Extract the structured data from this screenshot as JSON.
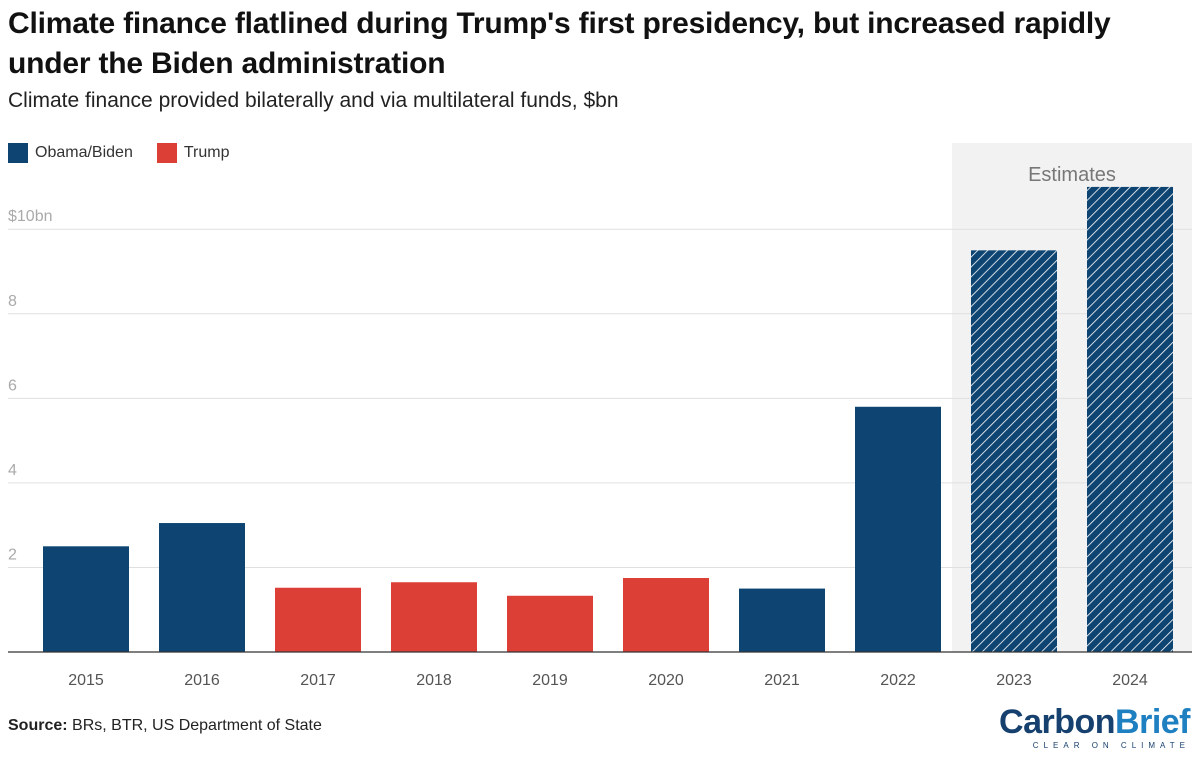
{
  "title": "Climate finance flatlined during Trump's first presidency, but increased rapidly under the Biden administration",
  "subtitle": "Climate finance provided bilaterally and via multilateral funds, $bn",
  "legend": [
    {
      "label": "Obama/Biden",
      "color": "#0e4472"
    },
    {
      "label": "Trump",
      "color": "#dc3f35"
    }
  ],
  "source": {
    "label": "Source:",
    "text": " BRs, BTR, US Department of State"
  },
  "logo": {
    "carbon": "Carbon",
    "brief": "Brief",
    "tagline": "CLEAR ON CLIMATE"
  },
  "chart_data": {
    "type": "bar",
    "categories": [
      "2015",
      "2016",
      "2017",
      "2018",
      "2019",
      "2020",
      "2021",
      "2022",
      "2023",
      "2024"
    ],
    "values": [
      2.5,
      3.05,
      1.52,
      1.65,
      1.33,
      1.75,
      1.5,
      5.8,
      9.5,
      11.0
    ],
    "groups": [
      "Obama/Biden",
      "Obama/Biden",
      "Trump",
      "Trump",
      "Trump",
      "Trump",
      "Obama/Biden",
      "Obama/Biden",
      "Obama/Biden",
      "Obama/Biden"
    ],
    "estimated": [
      false,
      false,
      false,
      false,
      false,
      false,
      false,
      false,
      true,
      true
    ],
    "estimates_label": "Estimates",
    "y_ticks": [
      {
        "value": 2,
        "label": "2"
      },
      {
        "value": 4,
        "label": "4"
      },
      {
        "value": 6,
        "label": "6"
      },
      {
        "value": 8,
        "label": "8"
      },
      {
        "value": 10,
        "label": "$10bn"
      }
    ],
    "ylim": [
      0,
      11.4
    ],
    "grid": true,
    "colors": {
      "Obama/Biden": "#0e4472",
      "Trump": "#dc3f35",
      "estimates_band": "#f2f2f2"
    }
  }
}
